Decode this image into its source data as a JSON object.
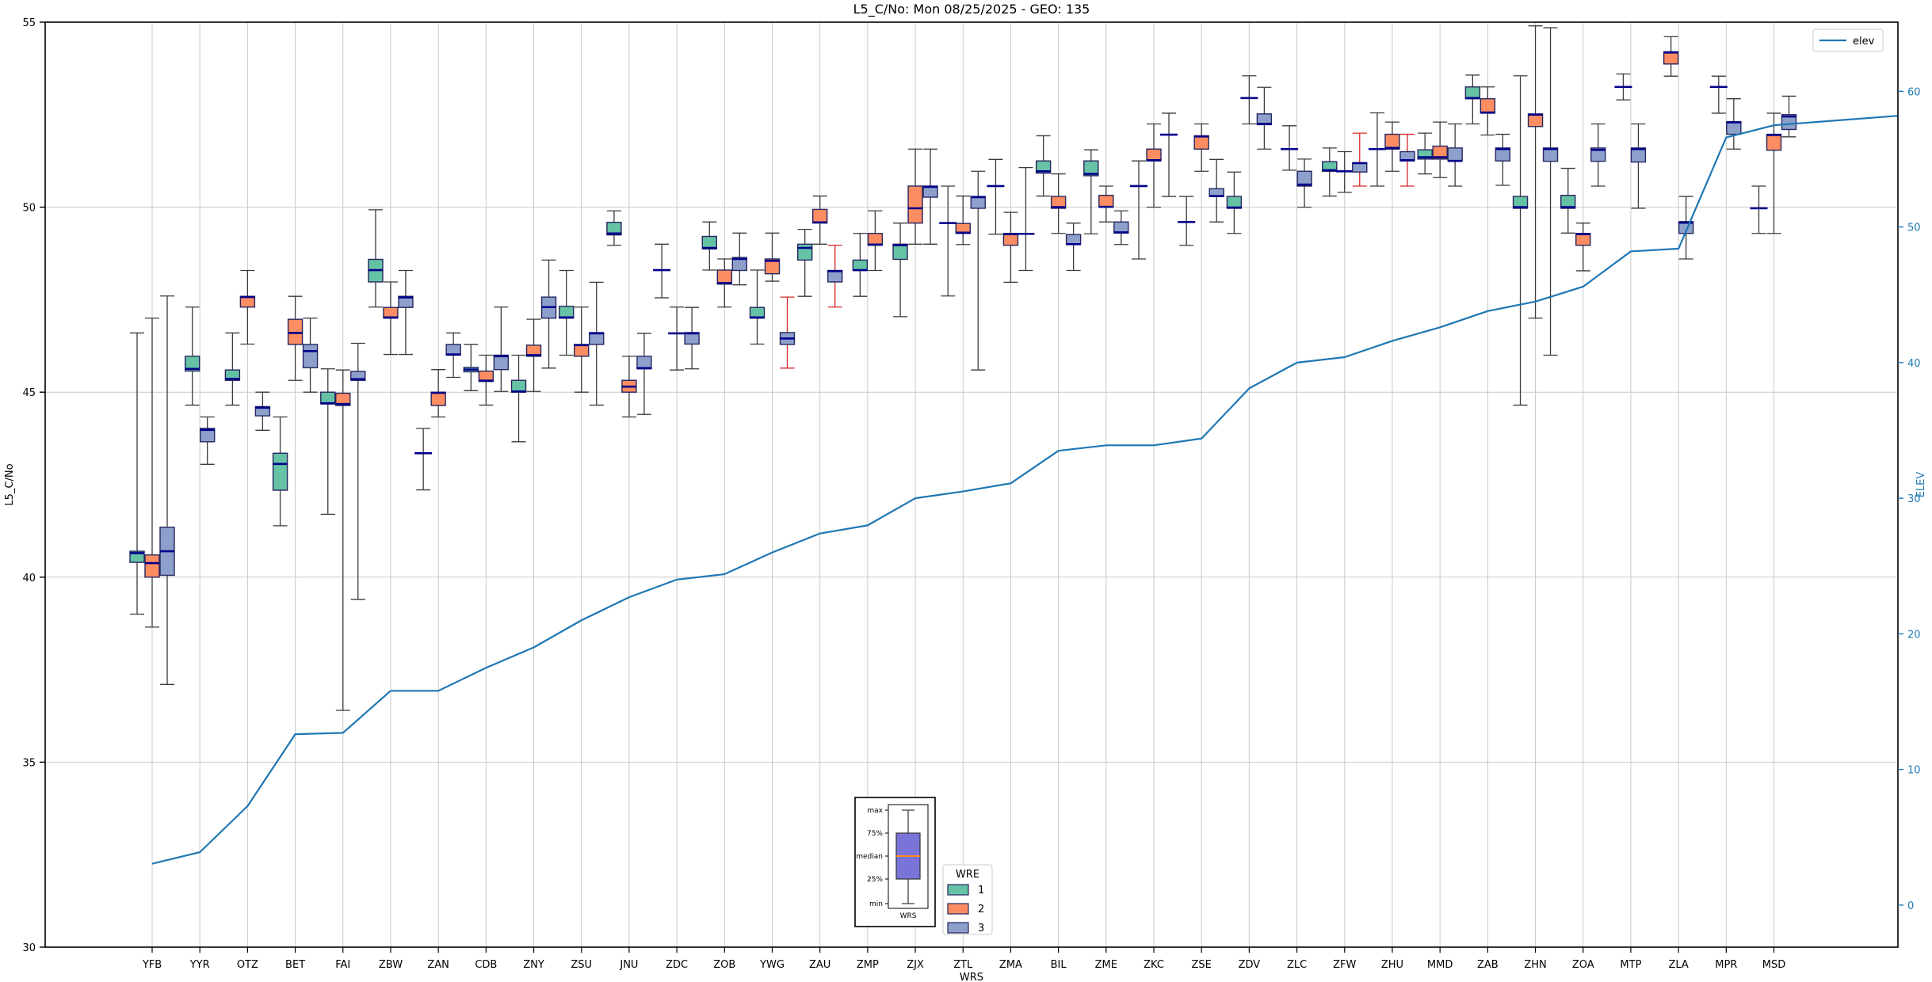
{
  "title": "L5_C/No: Mon 08/25/2025 - GEO: 135",
  "axes": {
    "left": {
      "label": "L5_C/No",
      "ticks": [
        30,
        35,
        40,
        45,
        50,
        55
      ],
      "range": [
        30,
        55
      ],
      "color": "#000000"
    },
    "right": {
      "label": "ELEV",
      "ticks": [
        0,
        10,
        20,
        30,
        40,
        50,
        60
      ],
      "range": [
        -3.1,
        65.1
      ],
      "color": "#1f77b4"
    },
    "bottom": {
      "label": "WRS"
    }
  },
  "legend_elev": {
    "label": "elev",
    "line_color": "#1f77b4"
  },
  "legend_wre": {
    "title": "WRE",
    "entries": [
      {
        "label": "1",
        "color": "#66c2a5"
      },
      {
        "label": "2",
        "color": "#fc8d62"
      },
      {
        "label": "3",
        "color": "#8da0cb"
      }
    ]
  },
  "inset": {
    "labels": [
      "max",
      "75%",
      "median",
      "25%",
      "min"
    ],
    "xlabel": "WRS",
    "box_color": "#7b74d8",
    "median_color": "#ff8c1a"
  },
  "style": {
    "box_edge": "#262660",
    "median": "#00008b",
    "whisker": "#3a3a3a",
    "red_whisker": "#d62728",
    "grid": "#c9c9c9",
    "spine": "#000000",
    "elev_line": "#1f77b4",
    "wre_colors": {
      "1": "#66c2a5",
      "2": "#fc8d62",
      "3": "#8da0cb"
    }
  },
  "chart_data": {
    "type": "box",
    "title": "L5_C/No: Mon 08/25/2025 - GEO: 135",
    "xlabel": "WRS",
    "ylabel_left": "L5_C/No",
    "ylabel_right": "ELEV",
    "ylim_left": [
      30,
      55
    ],
    "ylim_right": [
      -3.1,
      65.1
    ],
    "grid": true,
    "stations": [
      "YFB",
      "YYR",
      "OTZ",
      "BET",
      "FAI",
      "ZBW",
      "ZAN",
      "CDB",
      "ZNY",
      "ZSU",
      "JNU",
      "ZDC",
      "ZOB",
      "YWG",
      "ZAU",
      "ZMP",
      "ZJX",
      "ZTL",
      "ZMA",
      "BIL",
      "ZME",
      "ZKC",
      "ZSE",
      "ZDV",
      "ZLC",
      "ZFW",
      "ZHU",
      "MMD",
      "ZAB",
      "ZHN",
      "ZOA",
      "MTP",
      "ZLA",
      "MPR",
      "MSD"
    ],
    "boxes": [
      {
        "s": "YFB",
        "w": 1,
        "lo": 39.0,
        "q1": 40.4,
        "m": 40.65,
        "q3": 40.7,
        "hi": 46.6
      },
      {
        "s": "YFB",
        "w": 2,
        "lo": 38.65,
        "q1": 40.0,
        "m": 40.38,
        "q3": 40.6,
        "hi": 47.0
      },
      {
        "s": "YFB",
        "w": 3,
        "lo": 37.1,
        "q1": 40.05,
        "m": 40.7,
        "q3": 41.35,
        "hi": 47.6
      },
      {
        "s": "YYR",
        "w": 1,
        "lo": 44.65,
        "q1": 45.57,
        "m": 45.63,
        "q3": 45.97,
        "hi": 47.3
      },
      {
        "s": "YYR",
        "w": 3,
        "lo": 43.05,
        "q1": 43.66,
        "m": 43.98,
        "q3": 44.02,
        "hi": 44.33
      },
      {
        "s": "OTZ",
        "w": 1,
        "lo": 44.65,
        "q1": 45.32,
        "m": 45.36,
        "q3": 45.6,
        "hi": 46.6
      },
      {
        "s": "OTZ",
        "w": 2,
        "lo": 46.3,
        "q1": 47.3,
        "m": 47.57,
        "q3": 47.59,
        "hi": 48.29
      },
      {
        "s": "OTZ",
        "w": 3,
        "lo": 43.97,
        "q1": 44.36,
        "m": 44.58,
        "q3": 44.61,
        "hi": 45.0
      },
      {
        "s": "BET",
        "w": 1,
        "lo": 41.39,
        "q1": 42.35,
        "m": 43.06,
        "q3": 43.35,
        "hi": 44.33
      },
      {
        "s": "BET",
        "w": 2,
        "lo": 45.32,
        "q1": 46.29,
        "m": 46.6,
        "q3": 46.97,
        "hi": 47.59
      },
      {
        "s": "BET",
        "w": 3,
        "lo": 45.0,
        "q1": 45.66,
        "m": 46.11,
        "q3": 46.29,
        "hi": 47.0
      },
      {
        "s": "FAI",
        "w": 1,
        "lo": 41.7,
        "q1": 44.68,
        "m": 44.7,
        "q3": 45.0,
        "hi": 45.63
      },
      {
        "s": "FAI",
        "w": 2,
        "lo": 36.4,
        "q1": 44.64,
        "m": 44.68,
        "q3": 44.97,
        "hi": 45.6
      },
      {
        "s": "FAI",
        "w": 3,
        "lo": 39.4,
        "q1": 45.32,
        "m": 45.35,
        "q3": 45.56,
        "hi": 46.32
      },
      {
        "s": "ZBW",
        "w": 1,
        "lo": 47.3,
        "q1": 47.98,
        "m": 48.3,
        "q3": 48.59,
        "hi": 49.93
      },
      {
        "s": "ZBW",
        "w": 2,
        "lo": 46.02,
        "q1": 47.0,
        "m": 47.02,
        "q3": 47.29,
        "hi": 47.98
      },
      {
        "s": "ZBW",
        "w": 3,
        "lo": 46.02,
        "q1": 47.29,
        "m": 47.56,
        "q3": 47.59,
        "hi": 48.29
      },
      {
        "s": "ZAN",
        "w": 1,
        "lo": 42.36,
        "q1": 43.35,
        "m": 43.35,
        "q3": 43.35,
        "hi": 44.02
      },
      {
        "s": "ZAN",
        "w": 2,
        "lo": 44.33,
        "q1": 44.64,
        "m": 44.98,
        "q3": 45.0,
        "hi": 45.61
      },
      {
        "s": "ZAN",
        "w": 3,
        "lo": 45.4,
        "q1": 46.0,
        "m": 46.02,
        "q3": 46.29,
        "hi": 46.6
      },
      {
        "s": "CDB",
        "w": 1,
        "lo": 45.04,
        "q1": 45.55,
        "m": 45.61,
        "q3": 45.67,
        "hi": 46.29
      },
      {
        "s": "CDB",
        "w": 2,
        "lo": 44.65,
        "q1": 45.29,
        "m": 45.31,
        "q3": 45.57,
        "hi": 46.0
      },
      {
        "s": "CDB",
        "w": 3,
        "lo": 45.02,
        "q1": 45.61,
        "m": 45.97,
        "q3": 46.0,
        "hi": 47.3
      },
      {
        "s": "ZNY",
        "w": 1,
        "lo": 43.66,
        "q1": 45.0,
        "m": 45.02,
        "q3": 45.32,
        "hi": 46.0
      },
      {
        "s": "ZNY",
        "w": 2,
        "lo": 45.02,
        "q1": 45.97,
        "m": 46.0,
        "q3": 46.27,
        "hi": 46.97
      },
      {
        "s": "ZNY",
        "w": 3,
        "lo": 45.65,
        "q1": 47.0,
        "m": 47.3,
        "q3": 47.57,
        "hi": 48.57
      },
      {
        "s": "ZSU",
        "w": 1,
        "lo": 46.0,
        "q1": 47.0,
        "m": 47.02,
        "q3": 47.32,
        "hi": 48.29
      },
      {
        "s": "ZSU",
        "w": 2,
        "lo": 45.0,
        "q1": 45.97,
        "m": 46.27,
        "q3": 46.29,
        "hi": 47.3
      },
      {
        "s": "ZSU",
        "w": 3,
        "lo": 44.65,
        "q1": 46.29,
        "m": 46.59,
        "q3": 46.61,
        "hi": 47.97
      },
      {
        "s": "JNU",
        "w": 1,
        "lo": 48.97,
        "q1": 49.25,
        "m": 49.29,
        "q3": 49.59,
        "hi": 49.9
      },
      {
        "s": "JNU",
        "w": 2,
        "lo": 44.33,
        "q1": 45.0,
        "m": 45.15,
        "q3": 45.32,
        "hi": 45.97
      },
      {
        "s": "JNU",
        "w": 3,
        "lo": 44.4,
        "q1": 45.63,
        "m": 45.65,
        "q3": 45.97,
        "hi": 46.59
      },
      {
        "s": "ZDC",
        "w": 1,
        "lo": 47.55,
        "q1": 48.3,
        "m": 48.3,
        "q3": 48.3,
        "hi": 49.0
      },
      {
        "s": "ZDC",
        "w": 2,
        "lo": 45.6,
        "q1": 46.59,
        "m": 46.59,
        "q3": 46.59,
        "hi": 47.3
      },
      {
        "s": "ZDC",
        "w": 3,
        "lo": 45.63,
        "q1": 46.3,
        "m": 46.59,
        "q3": 46.61,
        "hi": 47.29
      },
      {
        "s": "ZOB",
        "w": 1,
        "lo": 48.3,
        "q1": 48.87,
        "m": 48.9,
        "q3": 49.21,
        "hi": 49.6
      },
      {
        "s": "ZOB",
        "w": 2,
        "lo": 47.3,
        "q1": 47.92,
        "m": 47.95,
        "q3": 48.3,
        "hi": 48.6
      },
      {
        "s": "ZOB",
        "w": 3,
        "lo": 47.9,
        "q1": 48.29,
        "m": 48.6,
        "q3": 48.64,
        "hi": 49.3
      },
      {
        "s": "YWG",
        "w": 1,
        "lo": 46.3,
        "q1": 47.0,
        "m": 47.02,
        "q3": 47.29,
        "hi": 48.3
      },
      {
        "s": "YWG",
        "w": 2,
        "lo": 48.0,
        "q1": 48.2,
        "m": 48.55,
        "q3": 48.6,
        "hi": 49.3
      },
      {
        "s": "YWG",
        "w": 3,
        "lo": 45.65,
        "q1": 46.29,
        "m": 46.45,
        "q3": 46.61,
        "hi": 47.57,
        "red": true
      },
      {
        "s": "ZAU",
        "w": 1,
        "lo": 47.59,
        "q1": 48.57,
        "m": 48.9,
        "q3": 49.0,
        "hi": 49.4
      },
      {
        "s": "ZAU",
        "w": 2,
        "lo": 49.0,
        "q1": 49.57,
        "m": 49.59,
        "q3": 49.94,
        "hi": 50.3
      },
      {
        "s": "ZAU",
        "w": 3,
        "lo": 47.3,
        "q1": 47.98,
        "m": 48.27,
        "q3": 48.29,
        "hi": 48.97,
        "red": true
      },
      {
        "s": "ZMP",
        "w": 1,
        "lo": 47.59,
        "q1": 48.29,
        "m": 48.3,
        "q3": 48.57,
        "hi": 49.29
      },
      {
        "s": "ZMP",
        "w": 2,
        "lo": 48.29,
        "q1": 48.97,
        "m": 48.99,
        "q3": 49.29,
        "hi": 49.9
      },
      {
        "s": "ZJX",
        "w": 1,
        "lo": 47.04,
        "q1": 48.59,
        "m": 48.97,
        "q3": 49.0,
        "hi": 49.57
      },
      {
        "s": "ZJX",
        "w": 2,
        "lo": 49.0,
        "q1": 49.57,
        "m": 49.97,
        "q3": 50.57,
        "hi": 51.57
      },
      {
        "s": "ZJX",
        "w": 3,
        "lo": 49.0,
        "q1": 50.27,
        "m": 50.55,
        "q3": 50.57,
        "hi": 51.57
      },
      {
        "s": "ZTL",
        "w": 1,
        "lo": 47.6,
        "q1": 49.57,
        "m": 49.57,
        "q3": 49.57,
        "hi": 50.57
      },
      {
        "s": "ZTL",
        "w": 2,
        "lo": 48.99,
        "q1": 49.29,
        "m": 49.31,
        "q3": 49.56,
        "hi": 50.3
      },
      {
        "s": "ZTL",
        "w": 3,
        "lo": 45.6,
        "q1": 49.97,
        "m": 50.27,
        "q3": 50.29,
        "hi": 50.97
      },
      {
        "s": "ZMA",
        "w": 1,
        "lo": 49.27,
        "q1": 50.57,
        "m": 50.57,
        "q3": 50.57,
        "hi": 51.29
      },
      {
        "s": "ZMA",
        "w": 2,
        "lo": 47.97,
        "q1": 48.97,
        "m": 49.27,
        "q3": 49.29,
        "hi": 49.86
      },
      {
        "s": "ZMA",
        "w": 3,
        "lo": 48.29,
        "q1": 49.28,
        "m": 49.28,
        "q3": 49.28,
        "hi": 51.07
      },
      {
        "s": "BIL",
        "w": 1,
        "lo": 50.3,
        "q1": 50.92,
        "m": 50.97,
        "q3": 51.25,
        "hi": 51.93
      },
      {
        "s": "BIL",
        "w": 2,
        "lo": 49.29,
        "q1": 49.97,
        "m": 50.0,
        "q3": 50.29,
        "hi": 50.9
      },
      {
        "s": "BIL",
        "w": 3,
        "lo": 48.29,
        "q1": 48.99,
        "m": 49.0,
        "q3": 49.26,
        "hi": 49.57
      },
      {
        "s": "ZME",
        "w": 1,
        "lo": 49.28,
        "q1": 50.85,
        "m": 50.9,
        "q3": 51.25,
        "hi": 51.55
      },
      {
        "s": "ZME",
        "w": 2,
        "lo": 49.6,
        "q1": 50.0,
        "m": 50.01,
        "q3": 50.32,
        "hi": 50.57
      },
      {
        "s": "ZME",
        "w": 3,
        "lo": 48.99,
        "q1": 49.3,
        "m": 49.32,
        "q3": 49.6,
        "hi": 49.9
      },
      {
        "s": "ZKC",
        "w": 1,
        "lo": 48.6,
        "q1": 50.57,
        "m": 50.57,
        "q3": 50.57,
        "hi": 51.25
      },
      {
        "s": "ZKC",
        "w": 2,
        "lo": 50.0,
        "q1": 51.25,
        "m": 51.27,
        "q3": 51.57,
        "hi": 52.25
      },
      {
        "s": "ZKC",
        "w": 3,
        "lo": 50.29,
        "q1": 51.96,
        "m": 51.96,
        "q3": 51.96,
        "hi": 52.54
      },
      {
        "s": "ZSE",
        "w": 1,
        "lo": 48.97,
        "q1": 49.6,
        "m": 49.6,
        "q3": 49.6,
        "hi": 50.29
      },
      {
        "s": "ZSE",
        "w": 2,
        "lo": 50.97,
        "q1": 51.57,
        "m": 51.91,
        "q3": 51.93,
        "hi": 52.25
      },
      {
        "s": "ZSE",
        "w": 3,
        "lo": 49.6,
        "q1": 50.29,
        "m": 50.3,
        "q3": 50.5,
        "hi": 51.29
      },
      {
        "s": "ZDV",
        "w": 1,
        "lo": 49.29,
        "q1": 49.97,
        "m": 49.99,
        "q3": 50.29,
        "hi": 50.95
      },
      {
        "s": "ZDV",
        "w": 2,
        "lo": 52.25,
        "q1": 52.95,
        "m": 52.95,
        "q3": 52.95,
        "hi": 53.55
      },
      {
        "s": "ZDV",
        "w": 3,
        "lo": 51.57,
        "q1": 52.23,
        "m": 52.25,
        "q3": 52.52,
        "hi": 53.24
      },
      {
        "s": "ZLC",
        "w": 1,
        "lo": 51.0,
        "q1": 51.57,
        "m": 51.57,
        "q3": 51.57,
        "hi": 52.2
      },
      {
        "s": "ZLC",
        "w": 3,
        "lo": 50.0,
        "q1": 50.57,
        "m": 50.61,
        "q3": 50.97,
        "hi": 51.3
      },
      {
        "s": "ZFW",
        "w": 1,
        "lo": 50.3,
        "q1": 50.97,
        "m": 51.0,
        "q3": 51.23,
        "hi": 51.6
      },
      {
        "s": "ZFW",
        "w": 2,
        "lo": 50.4,
        "q1": 50.97,
        "m": 50.97,
        "q3": 50.97,
        "hi": 51.5
      },
      {
        "s": "ZFW",
        "w": 3,
        "lo": 50.57,
        "q1": 50.95,
        "m": 51.19,
        "q3": 51.2,
        "hi": 52.0,
        "red": true
      },
      {
        "s": "ZHU",
        "w": 1,
        "lo": 50.57,
        "q1": 51.57,
        "m": 51.57,
        "q3": 51.57,
        "hi": 52.55
      },
      {
        "s": "ZHU",
        "w": 2,
        "lo": 50.97,
        "q1": 51.57,
        "m": 51.6,
        "q3": 51.97,
        "hi": 52.3
      },
      {
        "s": "ZHU",
        "w": 3,
        "lo": 50.57,
        "q1": 51.25,
        "m": 51.27,
        "q3": 51.5,
        "hi": 51.97,
        "red": true
      },
      {
        "s": "MMD",
        "w": 1,
        "lo": 50.9,
        "q1": 51.3,
        "m": 51.35,
        "q3": 51.55,
        "hi": 52.0
      },
      {
        "s": "MMD",
        "w": 2,
        "lo": 50.8,
        "q1": 51.3,
        "m": 51.35,
        "q3": 51.65,
        "hi": 52.3
      },
      {
        "s": "MMD",
        "w": 3,
        "lo": 50.57,
        "q1": 51.25,
        "m": 51.25,
        "q3": 51.6,
        "hi": 52.25
      },
      {
        "s": "ZAB",
        "w": 1,
        "lo": 52.25,
        "q1": 52.93,
        "m": 52.95,
        "q3": 53.25,
        "hi": 53.57
      },
      {
        "s": "ZAB",
        "w": 2,
        "lo": 51.95,
        "q1": 52.54,
        "m": 52.56,
        "q3": 52.93,
        "hi": 53.25
      },
      {
        "s": "ZAB",
        "w": 3,
        "lo": 50.59,
        "q1": 51.25,
        "m": 51.57,
        "q3": 51.6,
        "hi": 51.97
      },
      {
        "s": "ZHN",
        "w": 1,
        "lo": 44.65,
        "q1": 49.97,
        "m": 50.0,
        "q3": 50.29,
        "hi": 53.55
      },
      {
        "s": "ZHN",
        "w": 2,
        "lo": 47.0,
        "q1": 52.18,
        "m": 52.5,
        "q3": 52.52,
        "hi": 54.9
      },
      {
        "s": "ZHN",
        "w": 3,
        "lo": 46.0,
        "q1": 51.24,
        "m": 51.57,
        "q3": 51.6,
        "hi": 54.85
      },
      {
        "s": "ZOA",
        "w": 1,
        "lo": 49.3,
        "q1": 49.97,
        "m": 50.0,
        "q3": 50.32,
        "hi": 51.05
      },
      {
        "s": "ZOA",
        "w": 2,
        "lo": 48.28,
        "q1": 48.97,
        "m": 49.27,
        "q3": 49.29,
        "hi": 49.57
      },
      {
        "s": "ZOA",
        "w": 3,
        "lo": 50.57,
        "q1": 51.24,
        "m": 51.55,
        "q3": 51.6,
        "hi": 52.25
      },
      {
        "s": "MTP",
        "w": 2,
        "lo": 52.9,
        "q1": 53.25,
        "m": 53.25,
        "q3": 53.25,
        "hi": 53.6
      },
      {
        "s": "MTP",
        "w": 3,
        "lo": 49.97,
        "q1": 51.22,
        "m": 51.57,
        "q3": 51.6,
        "hi": 52.25
      },
      {
        "s": "ZLA",
        "w": 2,
        "lo": 53.54,
        "q1": 53.87,
        "m": 54.18,
        "q3": 54.2,
        "hi": 54.61
      },
      {
        "s": "ZLA",
        "w": 3,
        "lo": 48.6,
        "q1": 49.29,
        "m": 49.58,
        "q3": 49.61,
        "hi": 50.29
      },
      {
        "s": "MPR",
        "w": 1,
        "lo": 52.54,
        "q1": 53.25,
        "m": 53.25,
        "q3": 53.25,
        "hi": 53.54
      },
      {
        "s": "MPR",
        "w": 3,
        "lo": 51.57,
        "q1": 51.97,
        "m": 52.29,
        "q3": 52.31,
        "hi": 52.93
      },
      {
        "s": "MSD",
        "w": 1,
        "lo": 49.29,
        "q1": 49.97,
        "m": 49.97,
        "q3": 49.97,
        "hi": 50.57
      },
      {
        "s": "MSD",
        "w": 2,
        "lo": 49.29,
        "q1": 51.54,
        "m": 51.95,
        "q3": 51.97,
        "hi": 52.54
      },
      {
        "s": "MSD",
        "w": 3,
        "lo": 51.9,
        "q1": 52.1,
        "m": 52.45,
        "q3": 52.5,
        "hi": 53.0
      }
    ],
    "elev_series": {
      "name": "elev",
      "values": [
        3.05,
        3.9,
        7.3,
        12.6,
        12.7,
        15.8,
        15.8,
        17.5,
        19.0,
        21.0,
        22.7,
        24.0,
        24.4,
        26.0,
        27.4,
        28.0,
        30.0,
        30.5,
        31.1,
        33.5,
        33.9,
        33.9,
        34.4,
        38.1,
        40.0,
        40.4,
        41.6,
        42.6,
        43.8,
        44.5,
        45.6,
        48.2,
        48.4,
        56.6,
        57.5
      ],
      "edge_extension": 58.2
    }
  }
}
